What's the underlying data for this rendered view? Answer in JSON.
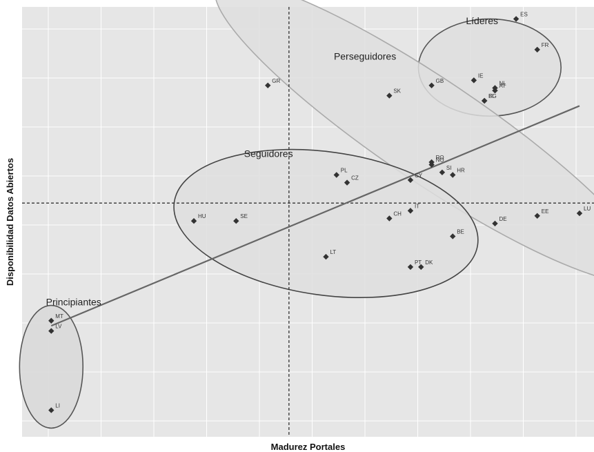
{
  "chart_data": {
    "type": "scatter",
    "xlabel": "Madurez Portales",
    "ylabel": "Disponibilidad Datos Abiertos",
    "xlim": [
      0,
      105
    ],
    "ylim": [
      0,
      80
    ],
    "reference_lines": {
      "x": 50,
      "y": 43
    },
    "grid": true,
    "trend_line": {
      "from": [
        5,
        19
      ],
      "to": [
        105,
        62
      ]
    },
    "points": [
      {
        "label": "ES",
        "x": 93,
        "y": 79
      },
      {
        "label": "FR",
        "x": 97,
        "y": 73
      },
      {
        "label": "GB",
        "x": 77,
        "y": 66
      },
      {
        "label": "IE",
        "x": 85,
        "y": 67
      },
      {
        "label": "NL",
        "x": 89,
        "y": 65.5
      },
      {
        "label": "AT",
        "x": 89,
        "y": 65
      },
      {
        "label": "FI",
        "x": 87,
        "y": 63
      },
      {
        "label": "BG",
        "x": 87,
        "y": 63
      },
      {
        "label": "GR",
        "x": 46,
        "y": 66
      },
      {
        "label": "SK",
        "x": 69,
        "y": 64
      },
      {
        "label": "RO",
        "x": 77,
        "y": 51
      },
      {
        "label": "NO",
        "x": 77,
        "y": 50.5
      },
      {
        "label": "SI",
        "x": 79,
        "y": 49
      },
      {
        "label": "HR",
        "x": 81,
        "y": 48.5
      },
      {
        "label": "PL",
        "x": 59,
        "y": 48.5
      },
      {
        "label": "CZ",
        "x": 61,
        "y": 47
      },
      {
        "label": "CY",
        "x": 73,
        "y": 47.5
      },
      {
        "label": "IT",
        "x": 73,
        "y": 41.5
      },
      {
        "label": "CH",
        "x": 69,
        "y": 40
      },
      {
        "label": "HU",
        "x": 32,
        "y": 39.5
      },
      {
        "label": "SE",
        "x": 40,
        "y": 39.5
      },
      {
        "label": "DE",
        "x": 89,
        "y": 39
      },
      {
        "label": "BE",
        "x": 81,
        "y": 36.5
      },
      {
        "label": "LT",
        "x": 57,
        "y": 32.5
      },
      {
        "label": "PT",
        "x": 73,
        "y": 30.5
      },
      {
        "label": "DK",
        "x": 75,
        "y": 30.5
      },
      {
        "label": "EE",
        "x": 97,
        "y": 40.5
      },
      {
        "label": "LU",
        "x": 105,
        "y": 41
      },
      {
        "label": "MT",
        "x": 5,
        "y": 20
      },
      {
        "label": "LV",
        "x": 5,
        "y": 18
      },
      {
        "label": "LI",
        "x": 5,
        "y": 2.5
      }
    ],
    "clusters": [
      {
        "name": "Líderes",
        "cx": 88,
        "cy": 69.5,
        "rx": 13.5,
        "ry": 9.5,
        "rotate": 0,
        "fill": "#dedede",
        "stroke": "#555555"
      },
      {
        "name": "Perseguidores",
        "cx": 77,
        "cy": 57,
        "rx": 49,
        "ry": 10,
        "rotate": 34,
        "fill": "#dedede",
        "stroke": "#aaaaaa"
      },
      {
        "name": "Seguidores",
        "cx": 57,
        "cy": 39,
        "rx": 29,
        "ry": 14,
        "rotate": 8,
        "fill": "#dedede",
        "stroke": "#444444"
      },
      {
        "name": "Principiantes",
        "cx": 5,
        "cy": 11,
        "rx": 6,
        "ry": 12,
        "rotate": 0,
        "fill": "#d8d8d8",
        "stroke": "#555555"
      }
    ],
    "cluster_labels": [
      {
        "text": "Líderes",
        "x": 83.5,
        "y": 78
      },
      {
        "text": "Perseguidores",
        "x": 58.5,
        "y": 71
      },
      {
        "text": "Seguidores",
        "x": 41.5,
        "y": 52
      },
      {
        "text": "Principiantes",
        "x": 4,
        "y": 23
      }
    ],
    "colors": {
      "panel": "#e6e6e6",
      "grid": "#ffffff",
      "marker": "#333333",
      "trend": "#666666"
    }
  }
}
